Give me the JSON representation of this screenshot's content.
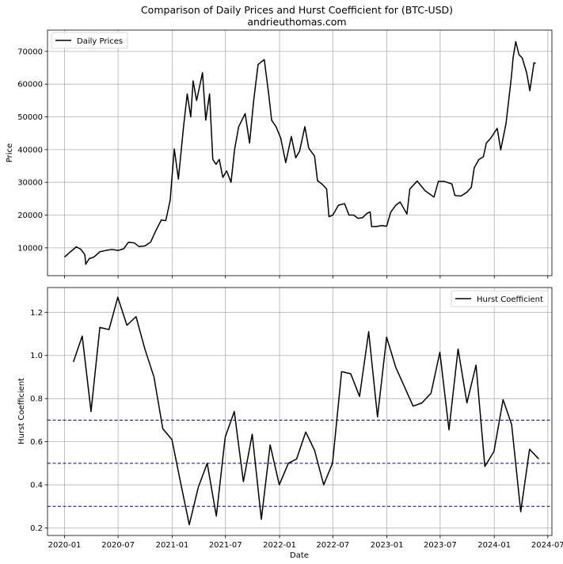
{
  "figure": {
    "title_line1": "Comparison of Daily Prices and Hurst Coefficient for (BTC-USD)",
    "title_line2": "andrieuthomas.com",
    "xlabel": "Date"
  },
  "chart_data": [
    {
      "type": "line",
      "ylabel": "Price",
      "ylim": [
        1500,
        76500
      ],
      "xlim": [
        "2019-11-04",
        "2024-07-15"
      ],
      "yticks": [
        10000,
        20000,
        30000,
        40000,
        50000,
        60000,
        70000
      ],
      "ytick_labels": [
        "10000",
        "20000",
        "30000",
        "40000",
        "50000",
        "60000",
        "70000"
      ],
      "grid": true,
      "legend_position": "top-left",
      "series": [
        {
          "name": "Daily Prices",
          "color": "#000000",
          "x": [
            "2020-01-01",
            "2020-01-20",
            "2020-02-10",
            "2020-02-25",
            "2020-03-10",
            "2020-03-13",
            "2020-03-25",
            "2020-04-10",
            "2020-04-30",
            "2020-05-20",
            "2020-06-10",
            "2020-07-01",
            "2020-07-20",
            "2020-08-05",
            "2020-08-25",
            "2020-09-10",
            "2020-10-01",
            "2020-10-20",
            "2020-11-05",
            "2020-11-25",
            "2020-12-10",
            "2020-12-25",
            "2021-01-08",
            "2021-01-22",
            "2021-02-08",
            "2021-02-21",
            "2021-03-05",
            "2021-03-13",
            "2021-03-25",
            "2021-04-14",
            "2021-04-25",
            "2021-05-08",
            "2021-05-19",
            "2021-05-30",
            "2021-06-10",
            "2021-06-22",
            "2021-07-05",
            "2021-07-20",
            "2021-08-01",
            "2021-08-15",
            "2021-09-06",
            "2021-09-21",
            "2021-10-05",
            "2021-10-20",
            "2021-11-10",
            "2021-11-25",
            "2021-12-05",
            "2021-12-20",
            "2022-01-05",
            "2022-01-22",
            "2022-02-10",
            "2022-02-25",
            "2022-03-10",
            "2022-03-28",
            "2022-04-10",
            "2022-04-30",
            "2022-05-10",
            "2022-05-25",
            "2022-06-10",
            "2022-06-18",
            "2022-07-01",
            "2022-07-20",
            "2022-08-10",
            "2022-08-25",
            "2022-09-10",
            "2022-09-25",
            "2022-10-10",
            "2022-10-25",
            "2022-11-05",
            "2022-11-10",
            "2022-11-25",
            "2022-12-15",
            "2022-12-31",
            "2023-01-14",
            "2023-01-31",
            "2023-02-15",
            "2023-03-10",
            "2023-03-20",
            "2023-04-14",
            "2023-05-10",
            "2023-06-10",
            "2023-06-25",
            "2023-07-15",
            "2023-08-10",
            "2023-08-20",
            "2023-09-10",
            "2023-09-30",
            "2023-10-15",
            "2023-10-25",
            "2023-11-10",
            "2023-11-25",
            "2023-12-05",
            "2023-12-20",
            "2024-01-11",
            "2024-01-23",
            "2024-02-10",
            "2024-02-28",
            "2024-03-05",
            "2024-03-14",
            "2024-03-25",
            "2024-04-05",
            "2024-04-20",
            "2024-05-01",
            "2024-05-15",
            "2024-05-21"
          ],
          "values": [
            7200,
            8700,
            10300,
            9600,
            7900,
            5000,
            6700,
            7200,
            8800,
            9200,
            9500,
            9200,
            9700,
            11700,
            11500,
            10400,
            10600,
            11800,
            15000,
            18500,
            18300,
            24500,
            40200,
            31000,
            46500,
            57000,
            50000,
            61000,
            55000,
            63500,
            49000,
            57000,
            37000,
            35500,
            37000,
            31500,
            33500,
            30000,
            40000,
            47000,
            51000,
            42000,
            55000,
            66000,
            67500,
            57000,
            49000,
            47000,
            43500,
            36000,
            44000,
            37500,
            39500,
            47000,
            40500,
            38000,
            30500,
            29500,
            28000,
            19500,
            20000,
            23000,
            23500,
            20000,
            20000,
            19000,
            19200,
            20500,
            21000,
            16500,
            16500,
            16800,
            16600,
            20900,
            23000,
            24000,
            20300,
            28000,
            30400,
            27500,
            25500,
            30300,
            30300,
            29500,
            26000,
            25800,
            27000,
            28500,
            34500,
            37000,
            37800,
            42000,
            43500,
            46500,
            39900,
            48000,
            62000,
            68000,
            73000,
            69000,
            68000,
            63500,
            58000,
            66500,
            66400
          ]
        }
      ]
    },
    {
      "type": "line",
      "ylabel": "Hurst Coefficient",
      "ylim": [
        0.165,
        1.315
      ],
      "xlim": [
        "2019-11-04",
        "2024-07-15"
      ],
      "yticks": [
        0.2,
        0.4,
        0.6,
        0.8,
        1.0,
        1.2
      ],
      "ytick_labels": [
        "0.2",
        "0.4",
        "0.6",
        "0.8",
        "1.0",
        "1.2"
      ],
      "xticks": [
        "2020-01-01",
        "2020-07-01",
        "2021-01-01",
        "2021-07-01",
        "2022-01-01",
        "2022-07-01",
        "2023-01-01",
        "2023-07-01",
        "2024-01-01",
        "2024-07-01"
      ],
      "xtick_labels": [
        "2020-01",
        "2020-07",
        "2021-01",
        "2021-07",
        "2022-01",
        "2022-07",
        "2023-01",
        "2023-07",
        "2024-01",
        "2024-07"
      ],
      "grid": true,
      "legend_position": "top-right",
      "reference_lines": [
        {
          "value": 0.3,
          "color": "#00008b",
          "style": "dashed"
        },
        {
          "value": 0.5,
          "color": "#00008b",
          "style": "dashed"
        },
        {
          "value": 0.7,
          "color": "#00008b",
          "style": "dashed"
        }
      ],
      "series": [
        {
          "name": "Hurst Coefficient",
          "color": "#000000",
          "x": [
            "2020-01-31",
            "2020-03-01",
            "2020-03-31",
            "2020-04-30",
            "2020-05-31",
            "2020-06-30",
            "2020-07-31",
            "2020-08-31",
            "2020-09-30",
            "2020-10-31",
            "2020-11-30",
            "2020-12-31",
            "2021-01-31",
            "2021-02-28",
            "2021-03-31",
            "2021-04-30",
            "2021-05-31",
            "2021-06-30",
            "2021-07-31",
            "2021-08-31",
            "2021-09-30",
            "2021-10-31",
            "2021-11-30",
            "2021-12-31",
            "2022-01-31",
            "2022-02-28",
            "2022-03-31",
            "2022-04-30",
            "2022-05-31",
            "2022-06-30",
            "2022-07-31",
            "2022-08-31",
            "2022-09-30",
            "2022-10-31",
            "2022-11-30",
            "2022-12-31",
            "2023-01-31",
            "2023-02-28",
            "2023-03-31",
            "2023-04-30",
            "2023-05-31",
            "2023-06-30",
            "2023-07-31",
            "2023-08-31",
            "2023-09-30",
            "2023-10-31",
            "2023-11-30",
            "2023-12-31",
            "2024-01-31",
            "2024-02-29",
            "2024-03-31",
            "2024-04-30",
            "2024-05-31"
          ],
          "values": [
            0.97,
            1.09,
            0.74,
            1.13,
            1.12,
            1.27,
            1.14,
            1.18,
            1.03,
            0.9,
            0.66,
            0.61,
            0.4,
            0.215,
            0.39,
            0.5,
            0.255,
            0.62,
            0.74,
            0.415,
            0.635,
            0.24,
            0.585,
            0.4,
            0.5,
            0.52,
            0.645,
            0.56,
            0.4,
            0.5,
            0.925,
            0.915,
            0.81,
            1.11,
            0.715,
            1.085,
            0.945,
            0.86,
            0.765,
            0.78,
            0.825,
            1.015,
            0.655,
            1.03,
            0.78,
            0.955,
            0.485,
            0.555,
            0.795,
            0.68,
            0.275,
            0.565,
            0.52
          ]
        }
      ]
    }
  ]
}
